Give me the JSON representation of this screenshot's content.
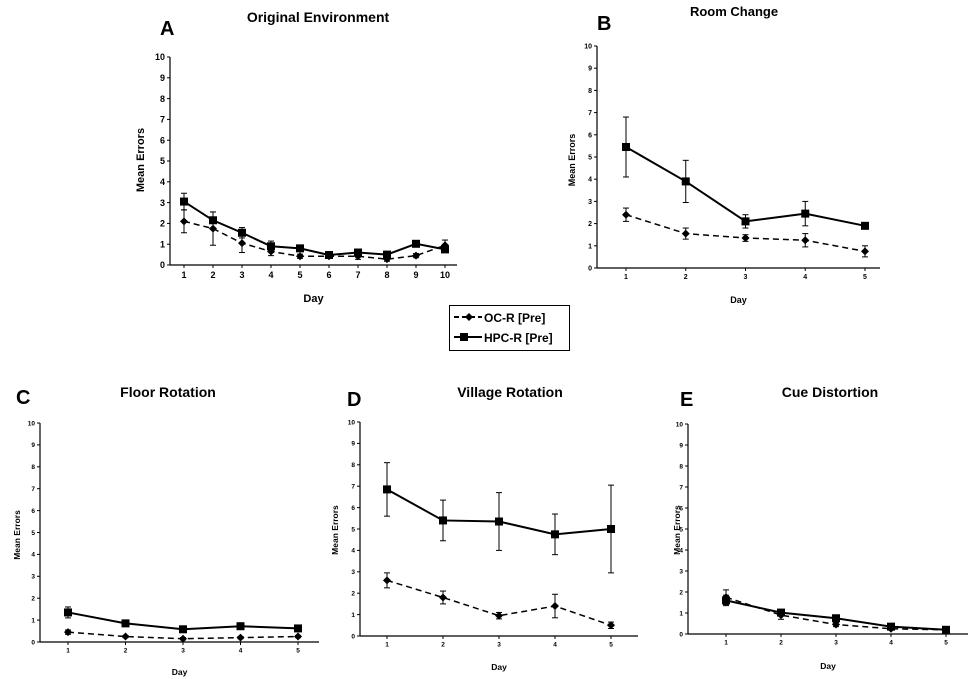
{
  "legend": {
    "entries": [
      {
        "label": "OC-R [Pre]",
        "marker": "diamond",
        "line": "dashed"
      },
      {
        "label": "HPC-R [Pre]",
        "marker": "square",
        "line": "solid"
      }
    ]
  },
  "chart_data": [
    {
      "type": "line",
      "panel_letter": "A",
      "title": "Original Environment",
      "xlabel": "Day",
      "ylabel": "Mean Errors",
      "ylim": [
        0,
        10
      ],
      "x": [
        1,
        2,
        3,
        4,
        5,
        6,
        7,
        8,
        9,
        10
      ],
      "series": [
        {
          "name": "OC-R [Pre]",
          "values": [
            2.1,
            1.75,
            1.05,
            0.65,
            0.42,
            0.42,
            0.42,
            0.28,
            0.45,
            0.95
          ],
          "errors": [
            0.55,
            0.8,
            0.45,
            0.2,
            0.1,
            0.1,
            0.15,
            0.1,
            0.1,
            0.25
          ]
        },
        {
          "name": "HPC-R [Pre]",
          "values": [
            3.05,
            2.15,
            1.55,
            0.9,
            0.8,
            0.48,
            0.6,
            0.5,
            1.02,
            0.75
          ],
          "errors": [
            0.4,
            0.4,
            0.25,
            0.25,
            0.1,
            0.1,
            0.15,
            0.1,
            0.1,
            0.15
          ]
        }
      ]
    },
    {
      "type": "line",
      "panel_letter": "B",
      "title": "Room Change",
      "xlabel": "Day",
      "ylabel": "Mean Errors",
      "ylim": [
        0,
        10
      ],
      "x": [
        1,
        2,
        3,
        4,
        5
      ],
      "series": [
        {
          "name": "OC-R [Pre]",
          "values": [
            2.4,
            1.55,
            1.35,
            1.25,
            0.75
          ],
          "errors": [
            0.3,
            0.25,
            0.15,
            0.3,
            0.25
          ]
        },
        {
          "name": "HPC-R [Pre]",
          "values": [
            5.45,
            3.9,
            2.1,
            2.45,
            1.9
          ],
          "errors": [
            1.35,
            0.95,
            0.3,
            0.55,
            0.1
          ]
        }
      ]
    },
    {
      "type": "line",
      "panel_letter": "C",
      "title": "Floor Rotation",
      "xlabel": "Day",
      "ylabel": "Mean Errors",
      "ylim": [
        0,
        10
      ],
      "x": [
        1,
        2,
        3,
        4,
        5
      ],
      "series": [
        {
          "name": "OC-R [Pre]",
          "values": [
            0.45,
            0.25,
            0.15,
            0.2,
            0.25
          ],
          "errors": [
            0.1,
            0.05,
            0.05,
            0.05,
            0.05
          ]
        },
        {
          "name": "HPC-R [Pre]",
          "values": [
            1.35,
            0.85,
            0.58,
            0.72,
            0.62
          ],
          "errors": [
            0.25,
            0.1,
            0.1,
            0.15,
            0.1
          ]
        }
      ]
    },
    {
      "type": "line",
      "panel_letter": "D",
      "title": "Village Rotation",
      "xlabel": "Day",
      "ylabel": "Mean Errors",
      "ylim": [
        0,
        10
      ],
      "x": [
        1,
        2,
        3,
        4,
        5
      ],
      "series": [
        {
          "name": "OC-R [Pre]",
          "values": [
            2.6,
            1.8,
            0.95,
            1.4,
            0.5
          ],
          "errors": [
            0.35,
            0.3,
            0.15,
            0.55,
            0.15
          ]
        },
        {
          "name": "HPC-R [Pre]",
          "values": [
            6.85,
            5.4,
            5.35,
            4.75,
            5.0
          ],
          "errors": [
            1.25,
            0.95,
            1.35,
            0.95,
            2.05
          ]
        }
      ]
    },
    {
      "type": "line",
      "panel_letter": "E",
      "title": "Cue Distortion",
      "xlabel": "Day",
      "ylabel": "Mean Errors",
      "ylim": [
        0,
        10
      ],
      "x": [
        1,
        2,
        3,
        4,
        5
      ],
      "series": [
        {
          "name": "OC-R [Pre]",
          "values": [
            1.75,
            0.9,
            0.45,
            0.25,
            0.2
          ],
          "errors": [
            0.35,
            0.2,
            0.1,
            0.05,
            0.05
          ]
        },
        {
          "name": "HPC-R [Pre]",
          "values": [
            1.6,
            1.02,
            0.75,
            0.35,
            0.2
          ],
          "errors": [
            0.25,
            0.15,
            0.1,
            0.1,
            0.05
          ]
        }
      ]
    }
  ]
}
